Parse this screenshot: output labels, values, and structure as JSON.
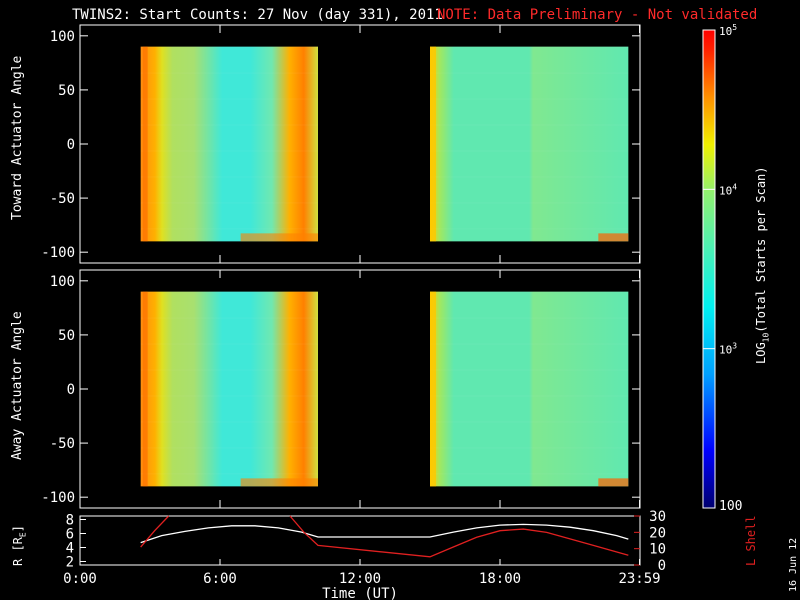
{
  "header": {
    "title": "TWINS2: Start Counts: 27 Nov (day 331), 2011",
    "note": "NOTE: Data Preliminary - Not validated",
    "note_color": "#ff2a2a",
    "datestamp": "16 Jun 12"
  },
  "chart_data": [
    {
      "type": "heatmap",
      "panel": "top",
      "ylabel": "Toward Actuator Angle",
      "ylim": [
        -110,
        110
      ],
      "yticks": [
        "100",
        "50",
        "0",
        "-50",
        "-100"
      ],
      "xlim": [
        0,
        24
      ],
      "data_blocks": [
        {
          "time_start": 2.6,
          "time_end": 10.2,
          "angle_min": -90,
          "angle_max": 90
        },
        {
          "time_start": 15.0,
          "time_end": 23.5,
          "angle_min": -90,
          "angle_max": 90
        }
      ]
    },
    {
      "type": "heatmap",
      "panel": "bottom",
      "ylabel": "Away Actuator Angle",
      "ylim": [
        -110,
        110
      ],
      "yticks": [
        "100",
        "50",
        "0",
        "-50",
        "-100"
      ],
      "xlim": [
        0,
        24
      ],
      "data_blocks": [
        {
          "time_start": 2.6,
          "time_end": 10.2,
          "angle_min": -90,
          "angle_max": 90
        },
        {
          "time_start": 15.0,
          "time_end": 23.5,
          "angle_min": -90,
          "angle_max": 90
        }
      ]
    },
    {
      "type": "line",
      "panel": "orbit",
      "ylabel_left": "R [R",
      "ylabel_left_sub": "E",
      "ylabel_left_close": "]",
      "yticks_left": [
        "8",
        "6",
        "4",
        "2"
      ],
      "ylim_left": [
        1.5,
        8.5
      ],
      "ylabel_right": "L Shell",
      "yticks_right": [
        "30",
        "20",
        "10",
        "0"
      ],
      "ylim_right": [
        0,
        30
      ],
      "xlabel": "Time (UT)",
      "xtick_labels": [
        "0:00",
        "6:00",
        "12:00",
        "18:00",
        "23:59"
      ],
      "xticks": [
        0,
        6,
        12,
        18,
        23.98
      ],
      "xlim": [
        0,
        24
      ],
      "series": [
        {
          "color": "#ffffff",
          "axis": "left",
          "x": [
            2.6,
            3.5,
            4.5,
            5.5,
            6.5,
            7.5,
            8.5,
            9.5,
            10.2,
            15.0,
            16.0,
            17.0,
            18.0,
            19.0,
            20.0,
            21.0,
            22.0,
            23.0,
            23.5
          ],
          "y": [
            4.7,
            5.7,
            6.3,
            6.8,
            7.1,
            7.1,
            6.8,
            6.2,
            5.5,
            5.5,
            6.2,
            6.8,
            7.2,
            7.3,
            7.2,
            6.9,
            6.4,
            5.7,
            5.2
          ]
        },
        {
          "color": "#e02020",
          "axis": "right",
          "x": [
            2.6,
            3.2,
            3.8
          ],
          "y": [
            11,
            21,
            30
          ]
        },
        {
          "color": "#e02020",
          "axis": "right",
          "x": [
            9.0,
            9.6,
            10.2,
            15.0,
            16.0,
            17.0,
            18.0,
            19.0,
            20.0,
            21.0,
            22.0,
            23.5
          ],
          "y": [
            30,
            20,
            12,
            5,
            11,
            17,
            21,
            22,
            20,
            16,
            12,
            6
          ]
        }
      ]
    }
  ],
  "colorbar": {
    "label": "LOG",
    "label_sub": "10",
    "label_rest": "(Total Starts per Scan)",
    "max_label_base": "10",
    "max_label_exp": "5",
    "mid_upper_base": "10",
    "mid_upper_exp": "4",
    "mid_lower_base": "10",
    "mid_lower_exp": "3",
    "min_label": "100",
    "values": [
      5,
      4,
      3,
      2
    ],
    "colors": [
      "#000080",
      "#0000ff",
      "#0080ff",
      "#00e0ff",
      "#40ffd0",
      "#60e8a0",
      "#a0f070",
      "#ffff00",
      "#ffb000",
      "#ff6000",
      "#ff0000",
      "#ffe6e6"
    ]
  }
}
